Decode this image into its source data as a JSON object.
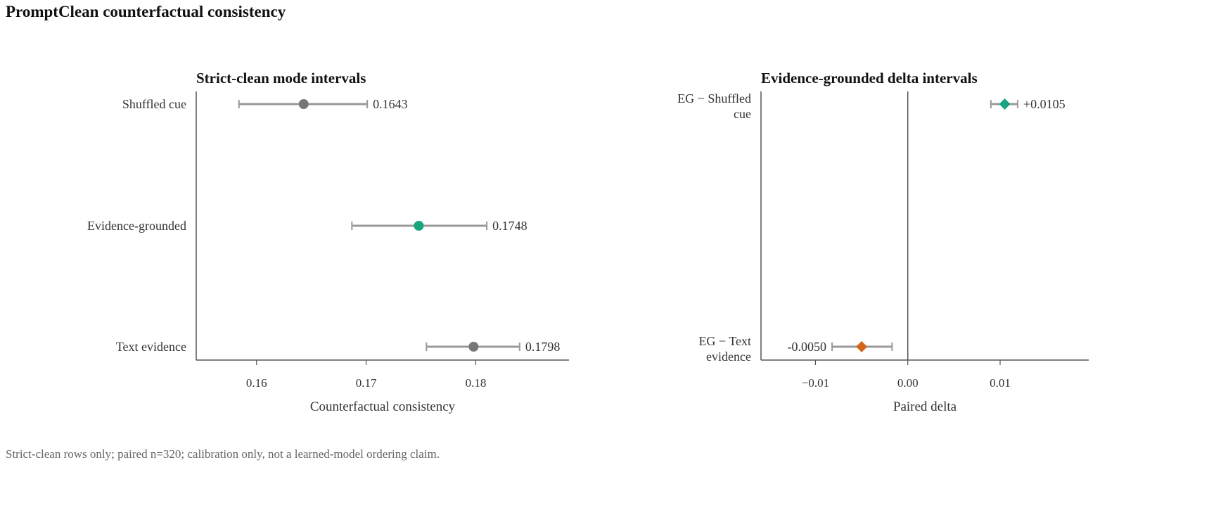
{
  "title": "PromptClean counterfactual consistency",
  "caption": "Strict-clean rows only; paired n=320; calibration only, not a learned-model ordering claim.",
  "colors": {
    "neutral": "#777777",
    "accent": "#18a47e",
    "negative": "#d4661a",
    "whisker": "#999999",
    "axis": "#555555"
  },
  "chart_data": [
    {
      "type": "scatter",
      "subtype": "interval",
      "title": "Strict-clean mode intervals",
      "xlabel": "Counterfactual consistency",
      "ylabel": "",
      "xlim": [
        0.1545,
        0.1885
      ],
      "xticks": [
        0.16,
        0.17,
        0.18
      ],
      "xtick_labels": [
        "0.16",
        "0.17",
        "0.18"
      ],
      "grid": false,
      "marker": "circle",
      "points": [
        {
          "label": "Shuffled cue",
          "value": 0.1643,
          "low": 0.1584,
          "high": 0.1701,
          "value_label": "0.1643",
          "color": "#777777"
        },
        {
          "label": "Evidence-grounded",
          "value": 0.1748,
          "low": 0.1687,
          "high": 0.181,
          "value_label": "0.1748",
          "color": "#18a47e"
        },
        {
          "label": "Text evidence",
          "value": 0.1798,
          "low": 0.1755,
          "high": 0.184,
          "value_label": "0.1798",
          "color": "#777777"
        }
      ]
    },
    {
      "type": "scatter",
      "subtype": "interval",
      "title": "Evidence-grounded delta intervals",
      "xlabel": "Paired delta",
      "ylabel": "",
      "xlim": [
        -0.0159,
        0.0196
      ],
      "xticks": [
        -0.01,
        0.0,
        0.01
      ],
      "xtick_labels": [
        "−0.01",
        "0.00",
        "0.01"
      ],
      "reference_line": 0.0,
      "grid": false,
      "marker": "diamond",
      "points": [
        {
          "label": [
            "EG − Shuffled",
            "cue"
          ],
          "value": 0.0105,
          "low": 0.009,
          "high": 0.0119,
          "value_label": "+0.0105",
          "color": "#18a47e"
        },
        {
          "label": [
            "EG − Text",
            "evidence"
          ],
          "value": -0.005,
          "low": -0.0082,
          "high": -0.0017,
          "value_label": "-0.0050",
          "color": "#d4661a"
        }
      ]
    }
  ]
}
